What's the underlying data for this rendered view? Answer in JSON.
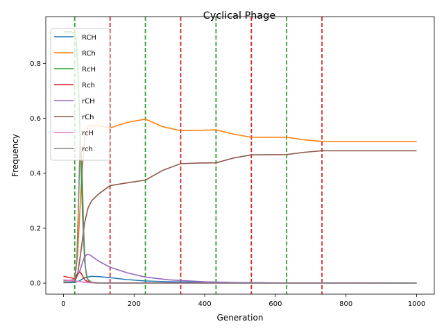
{
  "chart_data": {
    "type": "line",
    "title": "Cyclical Phage",
    "xlabel": "Generation",
    "ylabel": "Frequency",
    "xlim": [
      -50,
      1050
    ],
    "ylim": [
      -0.04,
      0.97
    ],
    "xticks": [
      0,
      200,
      400,
      600,
      800,
      1000
    ],
    "yticks": [
      0.0,
      0.2,
      0.4,
      0.6,
      0.8
    ],
    "xtick_labels": [
      "0",
      "200",
      "400",
      "600",
      "800",
      "1000"
    ],
    "ytick_labels": [
      "0.0",
      "0.2",
      "0.4",
      "0.6",
      "0.8"
    ],
    "legend_position": "top-left",
    "grid": false,
    "vlines": [
      {
        "x": 32,
        "color": "#2ca02c"
      },
      {
        "x": 132,
        "color": "#d62728"
      },
      {
        "x": 232,
        "color": "#2ca02c"
      },
      {
        "x": 332,
        "color": "#d62728"
      },
      {
        "x": 432,
        "color": "#2ca02c"
      },
      {
        "x": 532,
        "color": "#d62728"
      },
      {
        "x": 632,
        "color": "#2ca02c"
      },
      {
        "x": 732,
        "color": "#d62728"
      }
    ],
    "series": [
      {
        "name": "RCH",
        "color": "#1f77b4",
        "points": [
          [
            0,
            0.002
          ],
          [
            20,
            0.002
          ],
          [
            32,
            0.003
          ],
          [
            45,
            0.008
          ],
          [
            60,
            0.02
          ],
          [
            80,
            0.025
          ],
          [
            100,
            0.024
          ],
          [
            132,
            0.02
          ],
          [
            180,
            0.013
          ],
          [
            232,
            0.008
          ],
          [
            300,
            0.005
          ],
          [
            400,
            0.003
          ],
          [
            500,
            0.002
          ],
          [
            600,
            0.001
          ],
          [
            800,
            0.0005
          ],
          [
            1000,
            0.0003
          ]
        ]
      },
      {
        "name": "RCh",
        "color": "#ff7f0e",
        "points": [
          [
            0,
            0.01
          ],
          [
            20,
            0.01
          ],
          [
            32,
            0.015
          ],
          [
            40,
            0.1
          ],
          [
            50,
            0.35
          ],
          [
            60,
            0.53
          ],
          [
            70,
            0.57
          ],
          [
            80,
            0.575
          ],
          [
            100,
            0.573
          ],
          [
            132,
            0.565
          ],
          [
            180,
            0.585
          ],
          [
            232,
            0.597
          ],
          [
            280,
            0.57
          ],
          [
            332,
            0.555
          ],
          [
            380,
            0.556
          ],
          [
            432,
            0.558
          ],
          [
            480,
            0.543
          ],
          [
            532,
            0.531
          ],
          [
            632,
            0.531
          ],
          [
            680,
            0.522
          ],
          [
            732,
            0.516
          ],
          [
            800,
            0.516
          ],
          [
            1000,
            0.516
          ]
        ]
      },
      {
        "name": "RcH",
        "color": "#2ca02c",
        "points": [
          [
            0,
            0.915
          ],
          [
            20,
            0.915
          ],
          [
            30,
            0.91
          ],
          [
            36,
            0.89
          ],
          [
            42,
            0.75
          ],
          [
            48,
            0.5
          ],
          [
            54,
            0.25
          ],
          [
            60,
            0.08
          ],
          [
            66,
            0.02
          ],
          [
            75,
            0.003
          ],
          [
            90,
            0.0005
          ],
          [
            1000,
            0.0
          ]
        ]
      },
      {
        "name": "Rch",
        "color": "#d62728",
        "points": [
          [
            0,
            0.025
          ],
          [
            20,
            0.02
          ],
          [
            32,
            0.017
          ],
          [
            40,
            0.035
          ],
          [
            48,
            0.04
          ],
          [
            55,
            0.025
          ],
          [
            62,
            0.01
          ],
          [
            75,
            0.003
          ],
          [
            100,
            0.001
          ],
          [
            1000,
            0.0
          ]
        ]
      },
      {
        "name": "rCH",
        "color": "#9467bd",
        "points": [
          [
            0,
            0.01
          ],
          [
            32,
            0.012
          ],
          [
            45,
            0.04
          ],
          [
            58,
            0.09
          ],
          [
            66,
            0.105
          ],
          [
            75,
            0.103
          ],
          [
            100,
            0.08
          ],
          [
            132,
            0.058
          ],
          [
            180,
            0.038
          ],
          [
            232,
            0.022
          ],
          [
            300,
            0.012
          ],
          [
            400,
            0.005
          ],
          [
            500,
            0.002
          ],
          [
            600,
            0.001
          ],
          [
            800,
            0.0003
          ],
          [
            1000,
            0.0001
          ]
        ]
      },
      {
        "name": "rCh",
        "color": "#8c564b",
        "points": [
          [
            0,
            0.003
          ],
          [
            32,
            0.005
          ],
          [
            40,
            0.03
          ],
          [
            50,
            0.12
          ],
          [
            60,
            0.22
          ],
          [
            70,
            0.275
          ],
          [
            80,
            0.3
          ],
          [
            100,
            0.325
          ],
          [
            132,
            0.355
          ],
          [
            180,
            0.365
          ],
          [
            232,
            0.375
          ],
          [
            280,
            0.41
          ],
          [
            332,
            0.435
          ],
          [
            380,
            0.437
          ],
          [
            432,
            0.438
          ],
          [
            480,
            0.455
          ],
          [
            532,
            0.467
          ],
          [
            632,
            0.468
          ],
          [
            680,
            0.476
          ],
          [
            732,
            0.482
          ],
          [
            800,
            0.482
          ],
          [
            1000,
            0.482
          ]
        ]
      },
      {
        "name": "rcH",
        "color": "#e377c2",
        "points": [
          [
            0,
            0.012
          ],
          [
            20,
            0.01
          ],
          [
            32,
            0.008
          ],
          [
            45,
            0.006
          ],
          [
            60,
            0.003
          ],
          [
            80,
            0.001
          ],
          [
            120,
            0.0003
          ],
          [
            1000,
            0.0
          ]
        ]
      },
      {
        "name": "rch",
        "color": "#7f7f7f",
        "points": [
          [
            0,
            0.005
          ],
          [
            20,
            0.005
          ],
          [
            32,
            0.006
          ],
          [
            38,
            0.09
          ],
          [
            43,
            0.3
          ],
          [
            47,
            0.52
          ],
          [
            52,
            0.45
          ],
          [
            57,
            0.2
          ],
          [
            62,
            0.06
          ],
          [
            68,
            0.015
          ],
          [
            80,
            0.003
          ],
          [
            100,
            0.0005
          ],
          [
            1000,
            0.0
          ]
        ]
      }
    ]
  }
}
